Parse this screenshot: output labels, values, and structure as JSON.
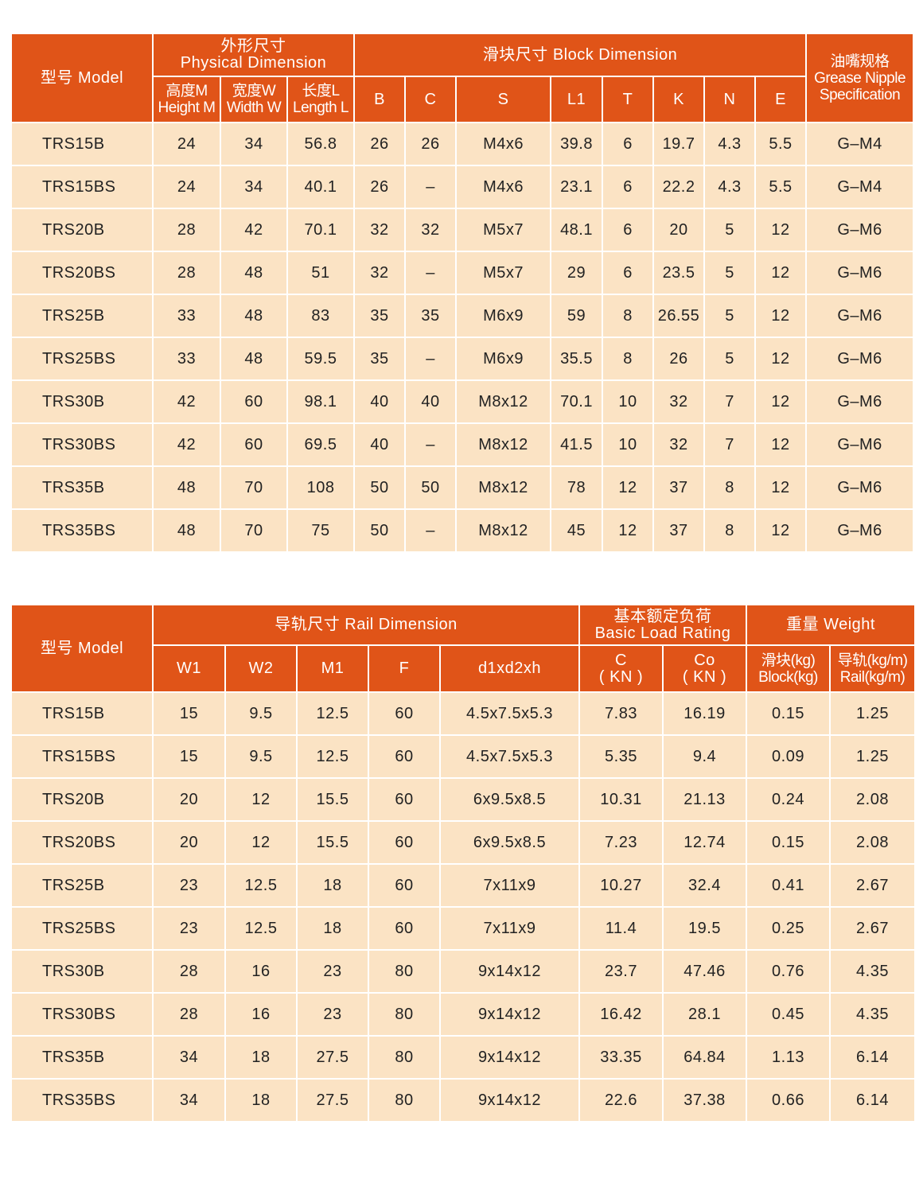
{
  "block_table": {
    "header": {
      "model": "型号 Model",
      "physical_cn": "外形尺寸",
      "physical_en": "Physical Dimension",
      "block": "滑块尺寸 Block Dimension",
      "grease_cn": "油嘴规格",
      "grease_en1": "Grease Nipple",
      "grease_en2": "Specification",
      "height_cn": "高度M",
      "height_en": "Height M",
      "width_cn": "宽度W",
      "width_en": "Width W",
      "length_cn": "长度L",
      "length_en": "Length L",
      "cols": [
        "B",
        "C",
        "S",
        "L1",
        "T",
        "K",
        "N",
        "E"
      ]
    },
    "rows": [
      [
        "TRS15B",
        "24",
        "34",
        "56.8",
        "26",
        "26",
        "M4x6",
        "39.8",
        "6",
        "19.7",
        "4.3",
        "5.5",
        "G–M4"
      ],
      [
        "TRS15BS",
        "24",
        "34",
        "40.1",
        "26",
        "–",
        "M4x6",
        "23.1",
        "6",
        "22.2",
        "4.3",
        "5.5",
        "G–M4"
      ],
      [
        "TRS20B",
        "28",
        "42",
        "70.1",
        "32",
        "32",
        "M5x7",
        "48.1",
        "6",
        "20",
        "5",
        "12",
        "G–M6"
      ],
      [
        "TRS20BS",
        "28",
        "48",
        "51",
        "32",
        "–",
        "M5x7",
        "29",
        "6",
        "23.5",
        "5",
        "12",
        "G–M6"
      ],
      [
        "TRS25B",
        "33",
        "48",
        "83",
        "35",
        "35",
        "M6x9",
        "59",
        "8",
        "26.55",
        "5",
        "12",
        "G–M6"
      ],
      [
        "TRS25BS",
        "33",
        "48",
        "59.5",
        "35",
        "–",
        "M6x9",
        "35.5",
        "8",
        "26",
        "5",
        "12",
        "G–M6"
      ],
      [
        "TRS30B",
        "42",
        "60",
        "98.1",
        "40",
        "40",
        "M8x12",
        "70.1",
        "10",
        "32",
        "7",
        "12",
        "G–M6"
      ],
      [
        "TRS30BS",
        "42",
        "60",
        "69.5",
        "40",
        "–",
        "M8x12",
        "41.5",
        "10",
        "32",
        "7",
        "12",
        "G–M6"
      ],
      [
        "TRS35B",
        "48",
        "70",
        "108",
        "50",
        "50",
        "M8x12",
        "78",
        "12",
        "37",
        "8",
        "12",
        "G–M6"
      ],
      [
        "TRS35BS",
        "48",
        "70",
        "75",
        "50",
        "–",
        "M8x12",
        "45",
        "12",
        "37",
        "8",
        "12",
        "G–M6"
      ]
    ]
  },
  "rail_table": {
    "header": {
      "model": "型号 Model",
      "rail": "导轨尺寸 Rail Dimension",
      "load_cn": "基本额定负荷",
      "load_en": "Basic Load Rating",
      "weight": "重量 Weight",
      "cols": [
        "W1",
        "W2",
        "M1",
        "F",
        "d1xd2xh"
      ],
      "c": "C",
      "co": "Co",
      "kn": "( KN )",
      "block_cn": "滑块(kg)",
      "block_en": "Block(kg)",
      "rail_cn": "导轨(kg/m)",
      "rail_en": "Rail(kg/m)"
    },
    "rows": [
      [
        "TRS15B",
        "15",
        "9.5",
        "12.5",
        "60",
        "4.5x7.5x5.3",
        "7.83",
        "16.19",
        "0.15",
        "1.25"
      ],
      [
        "TRS15BS",
        "15",
        "9.5",
        "12.5",
        "60",
        "4.5x7.5x5.3",
        "5.35",
        "9.4",
        "0.09",
        "1.25"
      ],
      [
        "TRS20B",
        "20",
        "12",
        "15.5",
        "60",
        "6x9.5x8.5",
        "10.31",
        "21.13",
        "0.24",
        "2.08"
      ],
      [
        "TRS20BS",
        "20",
        "12",
        "15.5",
        "60",
        "6x9.5x8.5",
        "7.23",
        "12.74",
        "0.15",
        "2.08"
      ],
      [
        "TRS25B",
        "23",
        "12.5",
        "18",
        "60",
        "7x11x9",
        "10.27",
        "32.4",
        "0.41",
        "2.67"
      ],
      [
        "TRS25BS",
        "23",
        "12.5",
        "18",
        "60",
        "7x11x9",
        "11.4",
        "19.5",
        "0.25",
        "2.67"
      ],
      [
        "TRS30B",
        "28",
        "16",
        "23",
        "80",
        "9x14x12",
        "23.7",
        "47.46",
        "0.76",
        "4.35"
      ],
      [
        "TRS30BS",
        "28",
        "16",
        "23",
        "80",
        "9x14x12",
        "16.42",
        "28.1",
        "0.45",
        "4.35"
      ],
      [
        "TRS35B",
        "34",
        "18",
        "27.5",
        "80",
        "9x14x12",
        "33.35",
        "64.84",
        "1.13",
        "6.14"
      ],
      [
        "TRS35BS",
        "34",
        "18",
        "27.5",
        "80",
        "9x14x12",
        "22.6",
        "37.38",
        "0.66",
        "6.14"
      ]
    ]
  },
  "colors": {
    "header_bg": "#E05418",
    "body_bg": "#FBE3C4",
    "header_text": "#FFFFFF"
  }
}
